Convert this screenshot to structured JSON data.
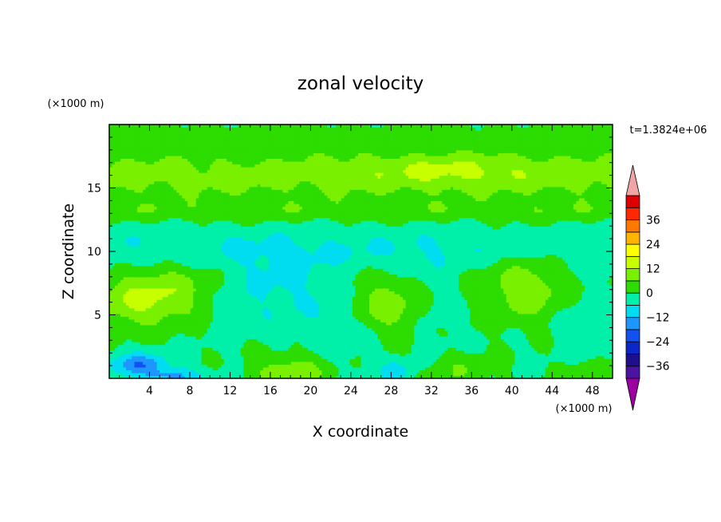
{
  "chart_data": {
    "type": "heatmap",
    "title": "zonal velocity",
    "xlabel": "X coordinate",
    "ylabel": "Z coordinate",
    "x_unit": "(×1000 m)",
    "y_unit": "(×1000 m)",
    "time_label": "t=1.3824e+06",
    "xlim": [
      0,
      50
    ],
    "ylim": [
      0,
      20
    ],
    "x_ticks": [
      4,
      8,
      12,
      16,
      20,
      24,
      28,
      32,
      36,
      40,
      44,
      48
    ],
    "x_tick_labels": [
      "4",
      "8",
      "12",
      "16",
      "20",
      "24",
      "28",
      "32",
      "36",
      "40",
      "44",
      "48"
    ],
    "y_ticks": [
      5,
      10,
      15
    ],
    "y_tick_labels": [
      "5",
      "10",
      "15"
    ],
    "colorbar": {
      "levels": [
        -42,
        -36,
        -30,
        -24,
        -18,
        -12,
        -6,
        0,
        6,
        12,
        18,
        24,
        30,
        36,
        42
      ],
      "tick_values": [
        36,
        24,
        12,
        0,
        -12,
        -24,
        -36
      ],
      "tick_labels": [
        "36",
        "24",
        "12",
        "0",
        "−12",
        "−24",
        "−36"
      ],
      "colors": [
        "#9b00a0",
        "#4b14a0",
        "#1e0f8c",
        "#0a28c8",
        "#1450f0",
        "#1e96ff",
        "#00dcf0",
        "#00f0aa",
        "#2ddc00",
        "#78f000",
        "#c8ff00",
        "#ffff00",
        "#ffb400",
        "#ff7800",
        "#ff2800",
        "#dc0000",
        "#f0a5a5"
      ],
      "under_color": "#9b00a0",
      "over_color": "#f0a5a5"
    },
    "field_notes": "smooth field: bands of positive velocity near z=13-18, near-zero/negative band near z=9-12, positive cells near bottom"
  }
}
